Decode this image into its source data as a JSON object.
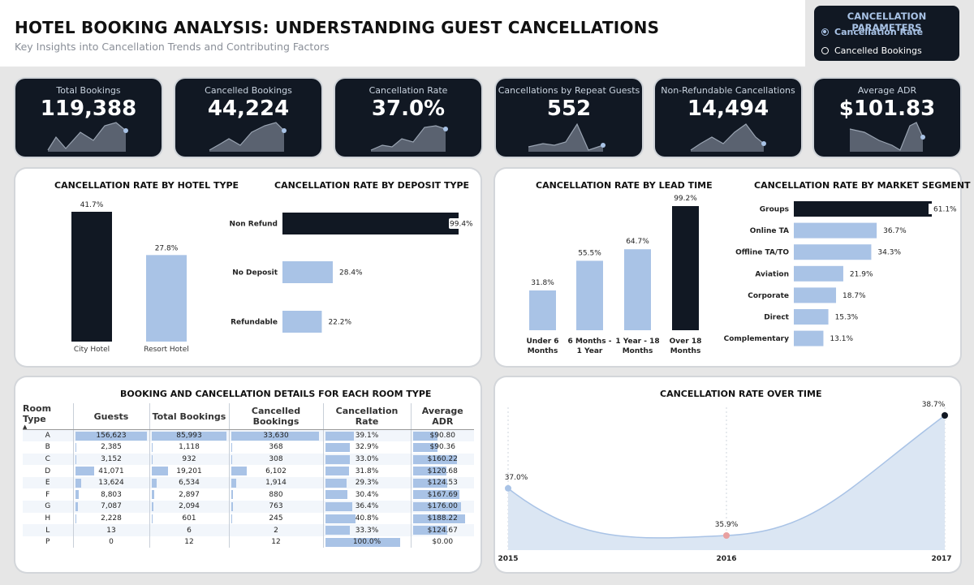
{
  "header": {
    "title": "HOTEL BOOKING ANALYSIS: UNDERSTANDING GUEST CANCELLATIONS",
    "subtitle": "Key Insights into Cancellation Trends and Contributing Factors"
  },
  "parameters": {
    "title": "CANCELLATION PARAMETERS",
    "options": [
      "Cancellation Rate",
      "Cancelled Bookings"
    ],
    "selected": "Cancellation Rate"
  },
  "kpis": [
    {
      "label": "Total Bookings",
      "value": "119,388"
    },
    {
      "label": "Cancelled Bookings",
      "value": "44,224"
    },
    {
      "label": "Cancellation Rate",
      "value": "37.0%"
    },
    {
      "label": "Cancellations by Repeat Guests",
      "value": "552"
    },
    {
      "label": "Non-Refundable Cancellations",
      "value": "14,494"
    },
    {
      "label": "Average ADR",
      "value": "$101.83"
    }
  ],
  "colors": {
    "dark": "#111823",
    "light": "#a9c3e6",
    "area": "#dbe6f3",
    "highlight": "#e8a0a0"
  },
  "chart_data": [
    {
      "type": "bar",
      "title": "CANCELLATION RATE BY HOTEL TYPE",
      "categories": [
        "City Hotel",
        "Resort Hotel"
      ],
      "values": [
        41.7,
        27.8
      ],
      "labels": [
        "41.7%",
        "27.8%"
      ]
    },
    {
      "type": "bar",
      "orientation": "horizontal",
      "title": "CANCELLATION RATE BY DEPOSIT TYPE",
      "categories": [
        "Non Refund",
        "No Deposit",
        "Refundable"
      ],
      "values": [
        99.4,
        28.4,
        22.2
      ],
      "labels": [
        "99.4%",
        "28.4%",
        "22.2%"
      ]
    },
    {
      "type": "bar",
      "title": "CANCELLATION RATE BY LEAD TIME",
      "categories": [
        "Under 6 Months",
        "6 Months - 1 Year",
        "1 Year - 18 Months",
        "Over 18 Months"
      ],
      "category_lines": [
        [
          "Under 6",
          "Months"
        ],
        [
          "6 Months -",
          "1 Year"
        ],
        [
          "1 Year - 18",
          "Months"
        ],
        [
          "Over 18",
          "Months"
        ]
      ],
      "values": [
        31.8,
        55.5,
        64.7,
        99.2
      ],
      "labels": [
        "31.8%",
        "55.5%",
        "64.7%",
        "99.2%"
      ]
    },
    {
      "type": "bar",
      "orientation": "horizontal",
      "title": "CANCELLATION RATE BY MARKET SEGMENT",
      "categories": [
        "Groups",
        "Online TA",
        "Offline TA/TO",
        "Aviation",
        "Corporate",
        "Direct",
        "Complementary"
      ],
      "values": [
        61.1,
        36.7,
        34.3,
        21.9,
        18.7,
        15.3,
        13.1
      ],
      "labels": [
        "61.1%",
        "36.7%",
        "34.3%",
        "21.9%",
        "18.7%",
        "15.3%",
        "13.1%"
      ]
    },
    {
      "type": "table",
      "title": "BOOKING AND CANCELLATION DETAILS FOR EACH ROOM TYPE",
      "columns": [
        "Room Type",
        "Guests",
        "Total Bookings",
        "Cancelled Bookings",
        "Cancellation Rate",
        "Average ADR"
      ],
      "rows": [
        {
          "room": "A",
          "guests": "156,623",
          "total": "85,993",
          "cancelled": "33,630",
          "rate": "39.1%",
          "adr": "$90.80",
          "v": [
            156623,
            85993,
            33630,
            39.1,
            90.8
          ]
        },
        {
          "room": "B",
          "guests": "2,385",
          "total": "1,118",
          "cancelled": "368",
          "rate": "32.9%",
          "adr": "$90.36",
          "v": [
            2385,
            1118,
            368,
            32.9,
            90.36
          ]
        },
        {
          "room": "C",
          "guests": "3,152",
          "total": "932",
          "cancelled": "308",
          "rate": "33.0%",
          "adr": "$160.22",
          "v": [
            3152,
            932,
            308,
            33.0,
            160.22
          ]
        },
        {
          "room": "D",
          "guests": "41,071",
          "total": "19,201",
          "cancelled": "6,102",
          "rate": "31.8%",
          "adr": "$120.68",
          "v": [
            41071,
            19201,
            6102,
            31.8,
            120.68
          ]
        },
        {
          "room": "E",
          "guests": "13,624",
          "total": "6,534",
          "cancelled": "1,914",
          "rate": "29.3%",
          "adr": "$124.53",
          "v": [
            13624,
            6534,
            1914,
            29.3,
            124.53
          ]
        },
        {
          "room": "F",
          "guests": "8,803",
          "total": "2,897",
          "cancelled": "880",
          "rate": "30.4%",
          "adr": "$167.69",
          "v": [
            8803,
            2897,
            880,
            30.4,
            167.69
          ]
        },
        {
          "room": "G",
          "guests": "7,087",
          "total": "2,094",
          "cancelled": "763",
          "rate": "36.4%",
          "adr": "$176.00",
          "v": [
            7087,
            2094,
            763,
            36.4,
            176.0
          ]
        },
        {
          "room": "H",
          "guests": "2,228",
          "total": "601",
          "cancelled": "245",
          "rate": "40.8%",
          "adr": "$188.22",
          "v": [
            2228,
            601,
            245,
            40.8,
            188.22
          ]
        },
        {
          "room": "L",
          "guests": "13",
          "total": "6",
          "cancelled": "2",
          "rate": "33.3%",
          "adr": "$124.67",
          "v": [
            13,
            6,
            2,
            33.3,
            124.67
          ]
        },
        {
          "room": "P",
          "guests": "0",
          "total": "12",
          "cancelled": "12",
          "rate": "100.0%",
          "adr": "$0.00",
          "v": [
            0,
            12,
            12,
            100.0,
            0
          ]
        }
      ]
    },
    {
      "type": "area",
      "title": "CANCELLATION RATE OVER TIME",
      "x": [
        "2015",
        "2016",
        "2017"
      ],
      "values": [
        37.0,
        35.9,
        38.7
      ],
      "labels": [
        "37.0%",
        "35.9%",
        "38.7%"
      ]
    }
  ]
}
